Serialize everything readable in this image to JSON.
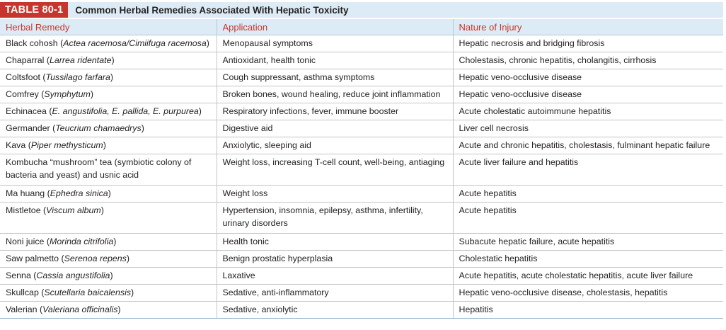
{
  "table": {
    "label": "TABLE 80-1",
    "title": "Common Herbal Remedies Associated With Hepatic Toxicity",
    "headers": [
      "Herbal Remedy",
      "Application",
      "Nature of Injury"
    ],
    "rows": [
      {
        "remedy": "Black cohosh",
        "latin": "Actea racemosa/Cimiifuga racemosa",
        "application": "Menopausal symptoms",
        "injury": "Hepatic necrosis and bridging fibrosis"
      },
      {
        "remedy": "Chaparral",
        "latin": "Larrea ridentate",
        "application": "Antioxidant, health tonic",
        "injury": "Cholestasis, chronic hepatitis, cholangitis, cirrhosis"
      },
      {
        "remedy": "Coltsfoot",
        "latin": "Tussilago farfara",
        "application": "Cough suppressant, asthma symptoms",
        "injury": "Hepatic veno-occlusive disease"
      },
      {
        "remedy": "Comfrey",
        "latin": "Symphytum",
        "application": "Broken bones, wound healing, reduce joint inflammation",
        "injury": "Hepatic veno-occlusive disease"
      },
      {
        "remedy": "Echinacea",
        "latin": "E. angustifolia, E. pallida, E. purpurea",
        "application": "Respiratory infections, fever, immune booster",
        "injury": "Acute cholestatic autoimmune hepatitis"
      },
      {
        "remedy": "Germander",
        "latin": "Teucrium chamaedrys",
        "application": "Digestive aid",
        "injury": "Liver cell necrosis"
      },
      {
        "remedy": "Kava",
        "latin": "Piper methysticum",
        "application": "Anxiolytic, sleeping aid",
        "injury": "Acute and chronic hepatitis, cholestasis, fulminant hepatic failure"
      },
      {
        "remedy": "Kombucha “mushroom” tea (symbiotic colony of bacteria and yeast) and usnic acid",
        "latin": "",
        "application": "Weight loss, increasing T-cell count, well-being, antiaging",
        "injury": "Acute liver failure and hepatitis"
      },
      {
        "remedy": "Ma huang",
        "latin": "Ephedra sinica",
        "application": "Weight loss",
        "injury": "Acute hepatitis"
      },
      {
        "remedy": "Mistletoe",
        "latin": "Viscum album",
        "application": "Hypertension, insomnia, epilepsy, asthma, infertility, urinary disorders",
        "injury": "Acute hepatitis"
      },
      {
        "remedy": "Noni juice",
        "latin": "Morinda citrifolia",
        "application": "Health tonic",
        "injury": "Subacute hepatic failure, acute hepatitis"
      },
      {
        "remedy": "Saw palmetto",
        "latin": "Serenoa repens",
        "application": "Benign prostatic hyperplasia",
        "injury": "Cholestatic hepatitis"
      },
      {
        "remedy": "Senna",
        "latin": "Cassia angustifolia",
        "application": "Laxative",
        "injury": "Acute hepatitis, acute cholestatic hepatitis, acute liver failure"
      },
      {
        "remedy": "Skullcap",
        "latin": "Scutellaria baicalensis",
        "application": "Sedative, anti-inflammatory",
        "injury": "Hepatic veno-occlusive disease, cholestasis, hepatitis"
      },
      {
        "remedy": "Valerian",
        "latin": "Valeriana officinalis",
        "application": "Sedative, anxiolytic",
        "injury": "Hepatitis"
      }
    ]
  },
  "colors": {
    "label_bg": "#c7362e",
    "header_bg": "#dcebf5",
    "header_text": "#c7362e"
  }
}
